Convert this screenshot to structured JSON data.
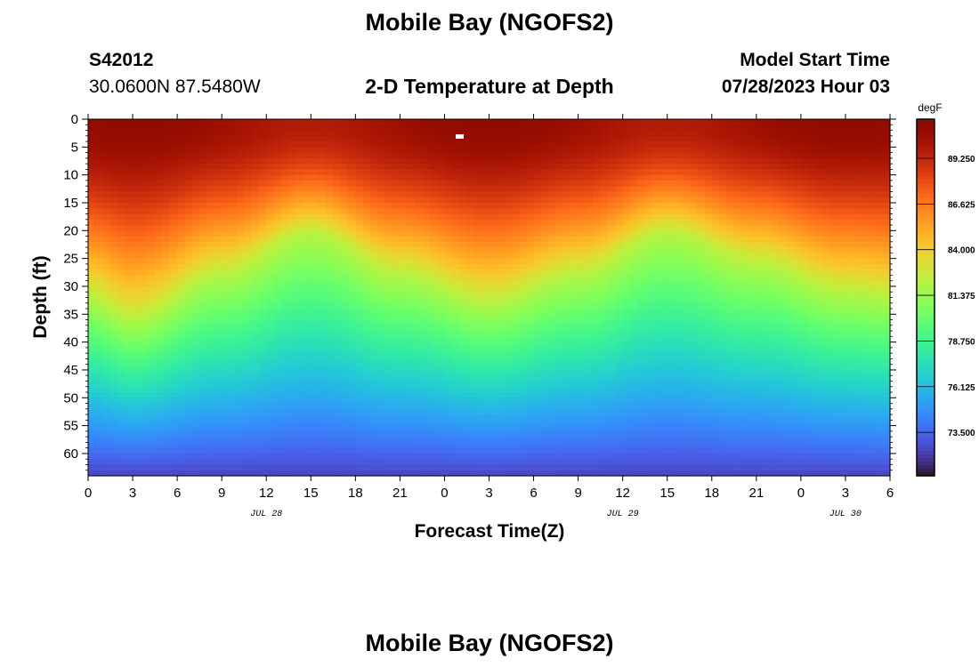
{
  "page": {
    "title": "Mobile Bay (NGOFS2)",
    "footer_title": "Mobile Bay (NGOFS2)"
  },
  "station": {
    "id": "S42012",
    "coords": "30.0600N  87.5480W"
  },
  "subtitle": "2-D Temperature at Depth",
  "model_start": {
    "label": "Model Start Time",
    "value": "07/28/2023 Hour 03"
  },
  "chart_data": {
    "type": "heatmap",
    "title": "2-D Temperature at Depth",
    "xlabel": "Forecast Time(Z)",
    "ylabel": "Depth (ft)",
    "x_tick_labels": [
      "0",
      "3",
      "6",
      "9",
      "12",
      "15",
      "18",
      "21",
      "0",
      "3",
      "6",
      "9",
      "12",
      "15",
      "18",
      "21",
      "0",
      "3",
      "6"
    ],
    "x_range_hours": [
      0,
      54
    ],
    "date_labels": [
      {
        "label": "JUL 28",
        "hour": 12
      },
      {
        "label": "JUL 29",
        "hour": 36
      },
      {
        "label": "JUL 30",
        "hour": 51
      }
    ],
    "y_ticks": [
      0,
      5,
      10,
      15,
      20,
      25,
      30,
      35,
      40,
      45,
      50,
      55,
      60
    ],
    "y_range": [
      0,
      64
    ],
    "y_inverted": true,
    "colorbar": {
      "unit": "degF",
      "min": 71.0,
      "max": 91.5,
      "tick_labels": [
        "89.250",
        "86.625",
        "84.000",
        "81.375",
        "78.750",
        "76.125",
        "73.500"
      ],
      "tick_values": [
        89.25,
        86.625,
        84.0,
        81.375,
        78.75,
        76.125,
        73.5
      ],
      "colormap": "turbo"
    },
    "thermocline_depth_ft": [
      {
        "hour": 0,
        "depth": 31
      },
      {
        "hour": 3,
        "depth": 35
      },
      {
        "hour": 9,
        "depth": 27
      },
      {
        "hour": 15,
        "depth": 20
      },
      {
        "hour": 21,
        "depth": 27
      },
      {
        "hour": 27,
        "depth": 32
      },
      {
        "hour": 33,
        "depth": 27
      },
      {
        "hour": 39,
        "depth": 20
      },
      {
        "hour": 45,
        "depth": 25
      },
      {
        "hour": 51,
        "depth": 30
      },
      {
        "hour": 54,
        "depth": 31
      }
    ],
    "surface_temperature_degF": 90.5,
    "bottom_temperature_degF": 72.5,
    "grid": false
  }
}
